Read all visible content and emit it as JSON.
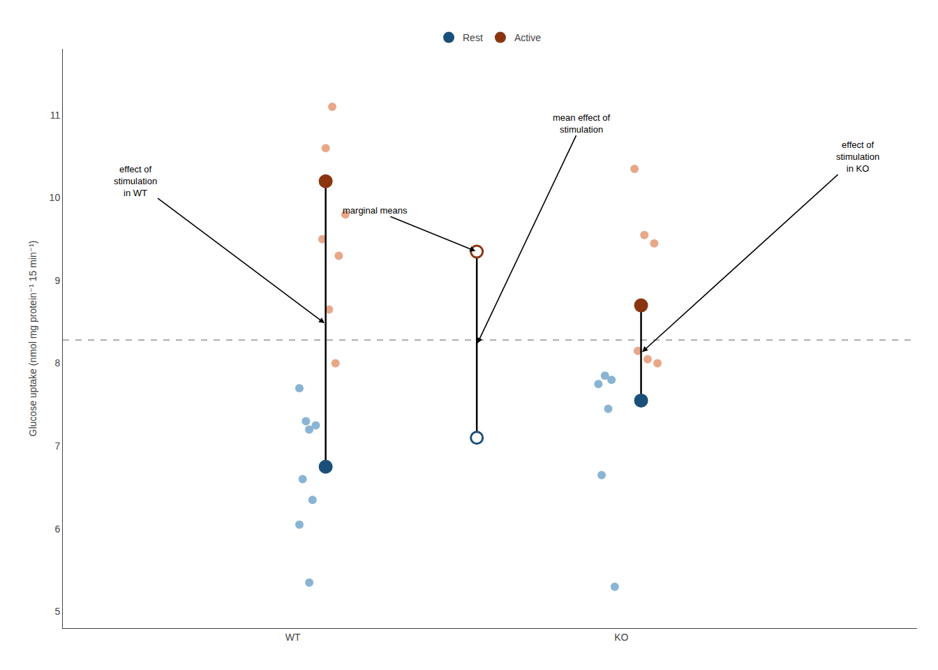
{
  "chart_data": {
    "type": "scatter",
    "ylabel": "Glucose uptake (nmol mg protein⁻¹ 15 min⁻¹)",
    "xlim": [
      0.3,
      2.9
    ],
    "ylim": [
      4.8,
      11.8
    ],
    "xticks": [
      {
        "value": 1.0,
        "label": "WT"
      },
      {
        "value": 2.0,
        "label": "KO"
      }
    ],
    "yticks": [
      5,
      6,
      7,
      8,
      9,
      10,
      11
    ],
    "grid": false,
    "legend": "top",
    "series": [
      {
        "type": "scatter",
        "color": "#e8a888",
        "marker": "dot",
        "x": [
          1.12,
          1.1,
          1.16,
          1.09,
          1.14,
          1.11,
          1.13,
          2.04,
          2.07,
          2.1,
          2.05,
          2.08,
          2.11
        ],
        "values": [
          11.1,
          10.6,
          9.8,
          9.5,
          9.3,
          8.65,
          8.0,
          10.35,
          9.55,
          9.45,
          8.15,
          8.05,
          8.0
        ]
      },
      {
        "type": "scatter",
        "color": "#8ab4d4",
        "marker": "dot",
        "x": [
          1.02,
          1.04,
          1.07,
          1.05,
          1.03,
          1.06,
          1.02,
          1.05,
          1.95,
          1.97,
          1.93,
          1.96,
          1.94,
          1.98
        ],
        "values": [
          7.7,
          7.3,
          7.25,
          7.2,
          6.6,
          6.35,
          6.05,
          5.35,
          7.85,
          7.8,
          7.75,
          7.45,
          6.65,
          5.3
        ]
      },
      {
        "type": "line",
        "color": "black",
        "line_style": "solid",
        "x": [
          1.1,
          1.1
        ],
        "values": [
          6.75,
          10.2
        ]
      },
      {
        "type": "line",
        "color": "black",
        "line_style": "solid",
        "x": [
          2.06,
          2.06
        ],
        "values": [
          7.55,
          8.7
        ]
      },
      {
        "type": "line",
        "color": "black",
        "line_style": "solid",
        "x": [
          1.56,
          1.56
        ],
        "values": [
          7.1,
          9.35
        ]
      },
      {
        "name": "Rest",
        "type": "scatter",
        "color": "#1a4f7a",
        "marker": "circle",
        "x": [
          1.1,
          2.06
        ],
        "values": [
          6.75,
          7.55
        ]
      },
      {
        "name": "Active",
        "type": "scatter",
        "color": "#8b3510",
        "marker": "circle",
        "x": [
          1.1,
          2.06
        ],
        "values": [
          10.2,
          8.7
        ]
      },
      {
        "type": "scatter",
        "color": "#8b3510",
        "marker": "open_circle",
        "x": [
          1.56
        ],
        "values": [
          9.35
        ]
      },
      {
        "type": "scatter",
        "color": "#1a4f7a",
        "marker": "open_circle",
        "x": [
          1.56
        ],
        "values": [
          7.1
        ]
      }
    ],
    "reference_lines": [
      {
        "y": 8.28,
        "color": "#aaaaaa",
        "line_style": "dashed"
      }
    ],
    "annotations": [
      {
        "text": "effect of\nstimulation\nin WT",
        "xy": [
          1.1,
          8.475
        ],
        "xytext": [
          0.52,
          10.2
        ]
      },
      {
        "text": "effect of\nstimulation\nin KO",
        "xy": [
          2.06,
          8.125
        ],
        "xytext": [
          2.72,
          10.5
        ]
      },
      {
        "text": "mean effect of\nstimulation",
        "xy": [
          1.56,
          8.225
        ],
        "xytext": [
          1.88,
          10.9
        ]
      },
      {
        "text": "marginal means",
        "xy": [
          1.56,
          9.35
        ],
        "xytext": [
          1.25,
          9.85
        ]
      }
    ]
  }
}
